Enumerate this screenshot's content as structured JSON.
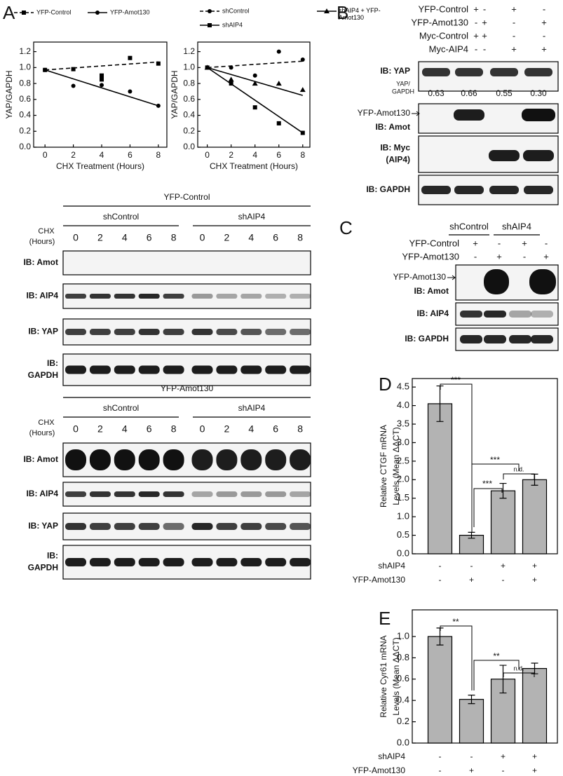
{
  "panel_labels": [
    "A",
    "B",
    "C",
    "D",
    "E"
  ],
  "chart_data": [
    {
      "type": "scatter",
      "ylabel": "YAP/GAPDH",
      "xlabel": "CHX Treatment (Hours)",
      "xlim": [
        -0.8,
        8.6
      ],
      "xticks": [
        0,
        2,
        4,
        6,
        8
      ],
      "ylim": [
        0,
        1.32
      ],
      "yticks": [
        {
          "value": 0,
          "label": "0.0"
        },
        0.2,
        0.4,
        0.6,
        0.8,
        {
          "value": 1,
          "label": "1.0"
        },
        1.2
      ],
      "series": [
        {
          "name": "YFP-Control",
          "marker": "square",
          "dashed": true,
          "color": "#000000",
          "x": [
            0,
            2,
            4,
            4,
            6,
            8
          ],
          "values": [
            0.97,
            0.98,
            0.9,
            0.85,
            1.12,
            1.05
          ],
          "fit": [
            0.97,
            1.07
          ]
        },
        {
          "name": "YFP-Amot130",
          "marker": "circle",
          "dashed": false,
          "color": "#000000",
          "x": [
            0,
            2,
            4,
            6,
            8
          ],
          "values": [
            0.97,
            0.77,
            0.78,
            0.7,
            0.52
          ],
          "fit": [
            0.97,
            0.52
          ]
        }
      ]
    },
    {
      "type": "scatter",
      "ylabel": "YAP/GAPDH",
      "xlabel": "CHX Treatment (Hours)",
      "xlim": [
        -0.8,
        8.6
      ],
      "xticks": [
        0,
        2,
        4,
        6,
        8
      ],
      "ylim": [
        0,
        1.32
      ],
      "yticks": [
        {
          "value": 0,
          "label": "0.0"
        },
        0.2,
        0.4,
        0.6,
        0.8,
        {
          "value": 1,
          "label": "1.0"
        },
        1.2
      ],
      "series": [
        {
          "name": "shControl",
          "marker": "circle",
          "dashed": true,
          "color": "#000000",
          "x": [
            0,
            2,
            4,
            6,
            8
          ],
          "values": [
            1.0,
            1.0,
            0.9,
            1.2,
            1.1
          ],
          "fit": [
            1.0,
            1.08
          ]
        },
        {
          "name": "shAIP4 + YFP-Amot130",
          "marker": "triangle",
          "dashed": false,
          "color": "#000000",
          "x": [
            0,
            2,
            4,
            6,
            8
          ],
          "values": [
            1.0,
            0.85,
            0.8,
            0.8,
            0.72
          ],
          "fit": [
            1.0,
            0.65
          ]
        },
        {
          "name": "shAIP4",
          "marker": "square",
          "dashed": false,
          "color": "#000000",
          "x": [
            0,
            2,
            4,
            6,
            8
          ],
          "values": [
            1.0,
            0.8,
            0.5,
            0.3,
            0.18
          ],
          "fit": [
            1.0,
            0.18
          ]
        }
      ]
    },
    {
      "type": "bar",
      "ylabel": [
        "Relative CTGF mRNA",
        "Levels (Mean ΔΔCT)"
      ],
      "color": "#b3b3b3",
      "categories": [
        null,
        null,
        null,
        null
      ],
      "values": [
        4.05,
        0.5,
        1.7,
        2.0
      ],
      "errors": [
        0.48,
        0.08,
        0.2,
        0.15
      ],
      "ylim": [
        0,
        4.73
      ],
      "yticks": [
        {
          "value": 0,
          "label": "0.0"
        },
        0.5,
        {
          "value": 1,
          "label": "1.0"
        },
        1.5,
        {
          "value": 2,
          "label": "2.0"
        },
        2.5,
        {
          "value": 3,
          "label": "3.0"
        },
        3.5,
        {
          "value": 4,
          "label": "4.0"
        },
        4.5
      ],
      "conditions": [
        {
          "name": "shAIP4",
          "signs": [
            "-",
            "-",
            "+",
            "+"
          ]
        },
        {
          "name": "YFP-Amot130",
          "signs": [
            "-",
            "+",
            "-",
            "+"
          ]
        }
      ],
      "annotations": [
        "***",
        "***",
        "***",
        "n.d."
      ]
    },
    {
      "type": "bar",
      "ylabel": [
        "Relative Cyr61 mRNA",
        "Levels (Mean ΔΔCT)"
      ],
      "color": "#b3b3b3",
      "categories": [
        null,
        null,
        null,
        null
      ],
      "values": [
        1.0,
        0.41,
        0.6,
        0.7
      ],
      "errors": [
        0.08,
        0.04,
        0.13,
        0.05
      ],
      "ylim": [
        0,
        1.25
      ],
      "yticks": [
        {
          "value": 0,
          "label": "0.0"
        },
        0.2,
        0.4,
        0.6,
        0.8,
        {
          "value": 1,
          "label": "1.0"
        }
      ],
      "conditions": [
        {
          "name": "shAIP4",
          "signs": [
            "-",
            "-",
            "+",
            "+"
          ]
        },
        {
          "name": "YFP-Amot130",
          "signs": [
            "-",
            "+",
            "-",
            "+"
          ]
        }
      ],
      "annotations": [
        "**",
        "**",
        "n.d."
      ]
    }
  ],
  "blot_sets": [
    {
      "title": "YFP-Control",
      "groups": [
        "shControl",
        "shAIP4"
      ],
      "chx": [
        "CHX",
        "(Hours)"
      ],
      "times": [
        0,
        2,
        4,
        6,
        8,
        0,
        2,
        4,
        6,
        8
      ],
      "rows": [
        [
          "IB: Amot"
        ],
        [
          "IB: AIP4"
        ],
        [
          "IB: YAP"
        ],
        [
          "IB:",
          "GAPDH"
        ]
      ]
    },
    {
      "title": "YFP-Amot130",
      "groups": [
        "shControl",
        "shAIP4"
      ],
      "chx": [
        "CHX",
        "(Hours)"
      ],
      "times": [
        0,
        2,
        4,
        6,
        8,
        0,
        2,
        4,
        6,
        8
      ],
      "rows": [
        [
          "IB: Amot"
        ],
        [
          "IB: AIP4"
        ],
        [
          "IB: YAP"
        ],
        [
          "IB:",
          "GAPDH"
        ]
      ]
    }
  ],
  "panel_b": {
    "conditions": [
      {
        "name": "YFP-Control",
        "signs": [
          "+",
          "-",
          "+",
          "-"
        ]
      },
      {
        "name": "YFP-Amot130",
        "signs": [
          "-",
          "+",
          "-",
          "+"
        ]
      },
      {
        "name": "Myc-Control",
        "signs": [
          "+",
          "+",
          "-",
          "-"
        ]
      },
      {
        "name": "Myc-AIP4",
        "signs": [
          "-",
          "-",
          "+",
          "+"
        ]
      }
    ],
    "ratio_label": [
      "YAP/",
      "GAPDH"
    ],
    "ratios": [
      "0.63",
      "0.66",
      "0.55",
      "0.30"
    ],
    "arrow_label": "YFP-Amot130",
    "rows": [
      [
        "IB: YAP"
      ],
      [
        "IB: Amot"
      ],
      [
        "IB: Myc",
        "(AIP4)"
      ],
      [
        "IB: GAPDH"
      ]
    ]
  },
  "panel_c": {
    "groups": [
      "shControl",
      "shAIP4"
    ],
    "conditions": [
      {
        "name": "YFP-Control",
        "signs": [
          "+",
          "-",
          "+",
          "-"
        ]
      },
      {
        "name": "YFP-Amot130",
        "signs": [
          "-",
          "+",
          "-",
          "+"
        ]
      }
    ],
    "arrow_label": "YFP-Amot130",
    "rows": [
      [
        "IB: Amot"
      ],
      [
        "IB: AIP4"
      ],
      [
        "IB: GAPDH"
      ]
    ]
  }
}
